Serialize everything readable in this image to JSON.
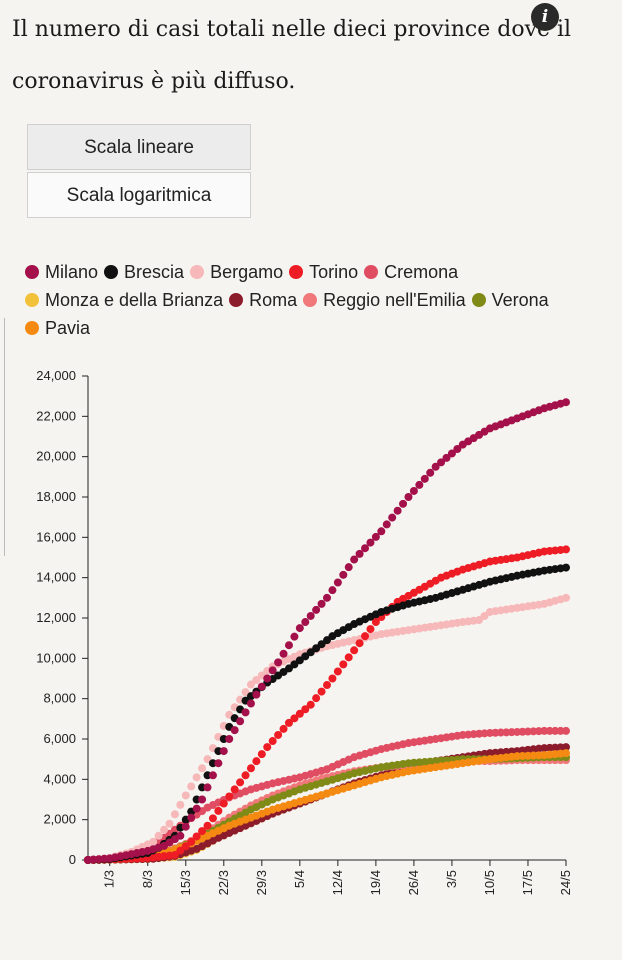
{
  "header": {
    "title": "Il numero di casi totali nelle dieci province dove il coronavirus è più diffuso.",
    "info_icon": "info-icon",
    "info_glyph": "i"
  },
  "scale_buttons": {
    "linear": "Scala lineare",
    "log": "Scala logaritmica",
    "selected": "linear"
  },
  "chart_data": {
    "type": "line",
    "xlabel": "",
    "ylabel": "",
    "x_ticks": [
      "1/3",
      "8/3",
      "15/3",
      "22/3",
      "29/3",
      "5/4",
      "12/4",
      "19/4",
      "26/4",
      "3/5",
      "10/5",
      "17/5",
      "24/5"
    ],
    "x_range_days": [
      -4,
      84
    ],
    "ylim": [
      0,
      24000
    ],
    "y_ticks": [
      "0",
      "2,000",
      "4,000",
      "6,000",
      "8,000",
      "10,000",
      "12,000",
      "14,000",
      "16,000",
      "18,000",
      "20,000",
      "22,000",
      "24,000"
    ],
    "legend_position": "top",
    "markers": "dots",
    "series": [
      {
        "name": "Milano",
        "color": "#a3104a",
        "x": [
          -4,
          0,
          7,
          10,
          13,
          17,
          22,
          27,
          31,
          35,
          40,
          45,
          50,
          55,
          60,
          65,
          70,
          75,
          80,
          84
        ],
        "y": [
          0,
          80,
          450,
          700,
          1200,
          3000,
          6000,
          8200,
          9800,
          11500,
          13000,
          14900,
          16300,
          18000,
          19500,
          20600,
          21400,
          21900,
          22400,
          22700
        ]
      },
      {
        "name": "Brescia",
        "color": "#111111",
        "x": [
          -4,
          0,
          7,
          9,
          12,
          15,
          18,
          22,
          25,
          29,
          33,
          37,
          41,
          45,
          50,
          55,
          60,
          65,
          70,
          75,
          80,
          84
        ],
        "y": [
          0,
          50,
          350,
          600,
          1200,
          2400,
          4200,
          6600,
          7900,
          8800,
          9500,
          10300,
          11100,
          11700,
          12300,
          12700,
          13000,
          13400,
          13800,
          14100,
          14350,
          14500
        ]
      },
      {
        "name": "Bergamo",
        "color": "#f6b8b8",
        "x": [
          -4,
          0,
          4,
          8,
          11,
          14,
          18,
          22,
          26,
          30,
          35,
          40,
          45,
          50,
          55,
          60,
          65,
          68,
          70,
          75,
          80,
          84
        ],
        "y": [
          0,
          100,
          400,
          900,
          1800,
          3200,
          5000,
          7200,
          8700,
          9600,
          10200,
          10600,
          10900,
          11200,
          11400,
          11600,
          11800,
          11900,
          12300,
          12500,
          12700,
          13000
        ]
      },
      {
        "name": "Torino",
        "color": "#ee1c24",
        "x": [
          -4,
          0,
          7,
          12,
          15,
          18,
          21,
          25,
          29,
          33,
          37,
          41,
          45,
          49,
          53,
          57,
          61,
          65,
          70,
          75,
          80,
          84
        ],
        "y": [
          0,
          30,
          100,
          250,
          900,
          1700,
          2800,
          4200,
          5600,
          6800,
          7700,
          9000,
          10400,
          11800,
          12800,
          13400,
          14000,
          14400,
          14800,
          15000,
          15300,
          15400
        ]
      },
      {
        "name": "Cremona",
        "color": "#e04d63",
        "x": [
          -4,
          0,
          6,
          10,
          14,
          18,
          22,
          26,
          30,
          35,
          40,
          45,
          50,
          55,
          60,
          65,
          70,
          75,
          80,
          84
        ],
        "y": [
          0,
          80,
          500,
          1100,
          1900,
          2600,
          3100,
          3500,
          3800,
          4100,
          4500,
          5100,
          5500,
          5800,
          6000,
          6200,
          6300,
          6350,
          6400,
          6400
        ]
      },
      {
        "name": "Monza e della Brianza",
        "color": "#f2c13a",
        "x": [
          -4,
          0,
          7,
          12,
          16,
          20,
          25,
          30,
          35,
          40,
          45,
          50,
          55,
          60,
          65,
          70,
          75,
          80,
          84
        ],
        "y": [
          0,
          20,
          50,
          150,
          500,
          1100,
          1700,
          2300,
          2800,
          3300,
          3800,
          4200,
          4500,
          4800,
          4900,
          5000,
          5000,
          5100,
          5100
        ]
      },
      {
        "name": "Roma",
        "color": "#8c1c2c",
        "x": [
          -4,
          0,
          8,
          12,
          16,
          20,
          25,
          30,
          35,
          40,
          45,
          50,
          55,
          60,
          65,
          70,
          75,
          80,
          84
        ],
        "y": [
          0,
          10,
          60,
          200,
          550,
          1100,
          1700,
          2300,
          2800,
          3300,
          3800,
          4200,
          4600,
          4900,
          5100,
          5300,
          5400,
          5550,
          5600
        ]
      },
      {
        "name": "Reggio nell'Emilia",
        "color": "#f0787a",
        "x": [
          -4,
          0,
          6,
          10,
          14,
          18,
          22,
          26,
          30,
          35,
          40,
          45,
          50,
          55,
          60,
          65,
          70,
          75,
          80,
          84
        ],
        "y": [
          0,
          30,
          150,
          350,
          800,
          1400,
          2100,
          2700,
          3200,
          3700,
          4100,
          4400,
          4600,
          4700,
          4800,
          4900,
          4900,
          4950,
          4950,
          4950
        ]
      },
      {
        "name": "Verona",
        "color": "#808a16",
        "x": [
          -4,
          0,
          6,
          10,
          14,
          18,
          22,
          26,
          30,
          35,
          40,
          45,
          50,
          55,
          60,
          65,
          70,
          75,
          80,
          84
        ],
        "y": [
          0,
          20,
          100,
          300,
          750,
          1300,
          1900,
          2500,
          3000,
          3500,
          3900,
          4300,
          4600,
          4800,
          4900,
          5000,
          5000,
          5050,
          5100,
          5100
        ]
      },
      {
        "name": "Pavia",
        "color": "#f58a12",
        "x": [
          -4,
          0,
          6,
          10,
          14,
          18,
          22,
          26,
          30,
          35,
          40,
          45,
          50,
          55,
          60,
          65,
          70,
          75,
          80,
          84
        ],
        "y": [
          0,
          40,
          150,
          350,
          700,
          1200,
          1700,
          2100,
          2500,
          2900,
          3300,
          3700,
          4100,
          4400,
          4600,
          4800,
          5000,
          5150,
          5200,
          5300
        ]
      }
    ]
  }
}
